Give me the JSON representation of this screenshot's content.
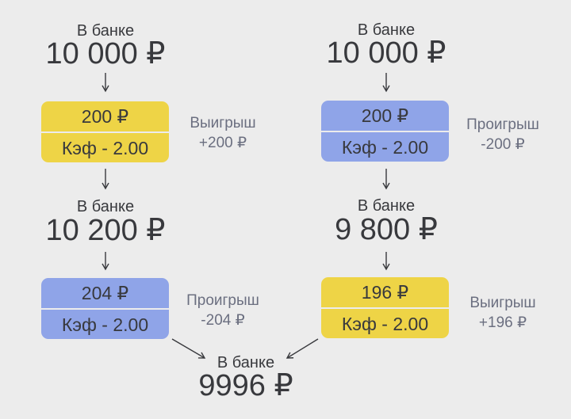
{
  "colors": {
    "win": "#eed446",
    "loss": "#8fa4e8",
    "background": "#ececec"
  },
  "left": {
    "bank1": {
      "label": "В банке",
      "amount": "10 000 ₽"
    },
    "bet1": {
      "stake": "200 ₽",
      "coef": "Кэф - 2.00",
      "result": "Выигрыш",
      "change": "+200 ₽",
      "outcome": "win"
    },
    "bank2": {
      "label": "В банке",
      "amount": "10 200 ₽"
    },
    "bet2": {
      "stake": "204 ₽",
      "coef": "Кэф - 2.00",
      "result": "Проигрыш",
      "change": "-204 ₽",
      "outcome": "loss"
    }
  },
  "right": {
    "bank1": {
      "label": "В банке",
      "amount": "10 000 ₽"
    },
    "bet1": {
      "stake": "200 ₽",
      "coef": "Кэф - 2.00",
      "result": "Проигрыш",
      "change": "-200 ₽",
      "outcome": "loss"
    },
    "bank2": {
      "label": "В банке",
      "amount": "9 800 ₽"
    },
    "bet2": {
      "stake": "196 ₽",
      "coef": "Кэф - 2.00",
      "result": "Выигрыш",
      "change": "+196 ₽",
      "outcome": "win"
    }
  },
  "final": {
    "label": "В банке",
    "amount": "9996 ₽"
  }
}
